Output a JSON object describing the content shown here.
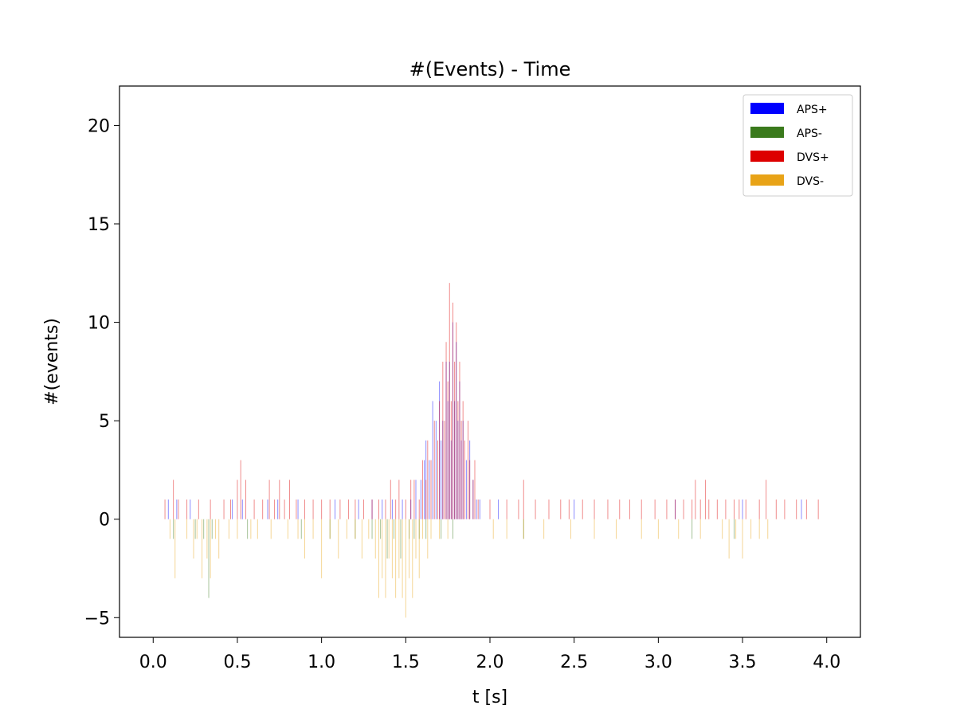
{
  "chart_data": {
    "type": "bar",
    "title": "#(Events) - Time",
    "xlabel": "t [s]",
    "ylabel": "#(events)",
    "xlim": [
      -0.2,
      4.2
    ],
    "ylim": [
      -6,
      22
    ],
    "xticks": [
      0.0,
      0.5,
      1.0,
      1.5,
      2.0,
      2.5,
      3.0,
      3.5,
      4.0
    ],
    "xtick_labels": [
      "0.0",
      "0.5",
      "1.0",
      "1.5",
      "2.0",
      "2.5",
      "3.0",
      "3.5",
      "4.0"
    ],
    "yticks": [
      -5,
      0,
      5,
      10,
      15,
      20
    ],
    "ytick_labels": [
      "−5",
      "0",
      "5",
      "10",
      "15",
      "20"
    ],
    "grid": false,
    "legend_position": "top-right",
    "bin_width_s": 0.002,
    "series": [
      {
        "name": "APS+",
        "color": "#0000ff",
        "points": [
          [
            0.09,
            1
          ],
          [
            0.14,
            1
          ],
          [
            0.22,
            1
          ],
          [
            0.47,
            1
          ],
          [
            0.53,
            1
          ],
          [
            0.68,
            1
          ],
          [
            0.74,
            1
          ],
          [
            0.86,
            1
          ],
          [
            1.08,
            1
          ],
          [
            1.22,
            1
          ],
          [
            1.3,
            1
          ],
          [
            1.36,
            1
          ],
          [
            1.42,
            1
          ],
          [
            1.48,
            1
          ],
          [
            1.53,
            1
          ],
          [
            1.56,
            2
          ],
          [
            1.59,
            2
          ],
          [
            1.61,
            3
          ],
          [
            1.62,
            4
          ],
          [
            1.64,
            3
          ],
          [
            1.66,
            6
          ],
          [
            1.68,
            5
          ],
          [
            1.7,
            7
          ],
          [
            1.71,
            4
          ],
          [
            1.72,
            5
          ],
          [
            1.74,
            8
          ],
          [
            1.75,
            6
          ],
          [
            1.76,
            8
          ],
          [
            1.77,
            4
          ],
          [
            1.78,
            10
          ],
          [
            1.79,
            6
          ],
          [
            1.8,
            9
          ],
          [
            1.81,
            5
          ],
          [
            1.82,
            7
          ],
          [
            1.83,
            4
          ],
          [
            1.84,
            5
          ],
          [
            1.86,
            3
          ],
          [
            1.88,
            4
          ],
          [
            1.9,
            2
          ],
          [
            1.92,
            1
          ],
          [
            1.94,
            1
          ],
          [
            2.05,
            1
          ],
          [
            2.5,
            1
          ],
          [
            3.1,
            1
          ],
          [
            3.5,
            1
          ],
          [
            3.85,
            1
          ]
        ]
      },
      {
        "name": "APS-",
        "color": "#3a7a1c",
        "points": [
          [
            0.12,
            -1
          ],
          [
            0.25,
            -1
          ],
          [
            0.3,
            -1
          ],
          [
            0.33,
            -4
          ],
          [
            0.35,
            -1
          ],
          [
            0.56,
            -1
          ],
          [
            0.88,
            -1
          ],
          [
            1.05,
            -1
          ],
          [
            1.2,
            -1
          ],
          [
            1.3,
            -1
          ],
          [
            1.35,
            -1
          ],
          [
            1.39,
            -2
          ],
          [
            1.43,
            -1
          ],
          [
            1.47,
            -2
          ],
          [
            1.52,
            -1
          ],
          [
            1.55,
            -1
          ],
          [
            1.58,
            -1
          ],
          [
            1.62,
            -1
          ],
          [
            1.71,
            -1
          ],
          [
            1.78,
            -1
          ],
          [
            2.2,
            -1
          ],
          [
            3.2,
            -1
          ],
          [
            3.45,
            -1
          ]
        ]
      },
      {
        "name": "DVS+",
        "color": "#dd0000",
        "points": [
          [
            0.07,
            1
          ],
          [
            0.12,
            2
          ],
          [
            0.15,
            1
          ],
          [
            0.2,
            1
          ],
          [
            0.27,
            1
          ],
          [
            0.34,
            1
          ],
          [
            0.42,
            1
          ],
          [
            0.46,
            1
          ],
          [
            0.5,
            2
          ],
          [
            0.52,
            3
          ],
          [
            0.55,
            2
          ],
          [
            0.6,
            1
          ],
          [
            0.65,
            1
          ],
          [
            0.69,
            2
          ],
          [
            0.72,
            1
          ],
          [
            0.75,
            2
          ],
          [
            0.78,
            1
          ],
          [
            0.81,
            2
          ],
          [
            0.85,
            1
          ],
          [
            0.9,
            1
          ],
          [
            0.95,
            1
          ],
          [
            1.0,
            1
          ],
          [
            1.05,
            1
          ],
          [
            1.11,
            1
          ],
          [
            1.16,
            1
          ],
          [
            1.2,
            1
          ],
          [
            1.25,
            1
          ],
          [
            1.3,
            1
          ],
          [
            1.34,
            1
          ],
          [
            1.38,
            1
          ],
          [
            1.41,
            2
          ],
          [
            1.44,
            1
          ],
          [
            1.46,
            2
          ],
          [
            1.5,
            1
          ],
          [
            1.53,
            2
          ],
          [
            1.55,
            2
          ],
          [
            1.58,
            1
          ],
          [
            1.6,
            3
          ],
          [
            1.62,
            2
          ],
          [
            1.63,
            4
          ],
          [
            1.65,
            3
          ],
          [
            1.67,
            5
          ],
          [
            1.69,
            4
          ],
          [
            1.7,
            6
          ],
          [
            1.72,
            8
          ],
          [
            1.73,
            5
          ],
          [
            1.74,
            9
          ],
          [
            1.75,
            7
          ],
          [
            1.76,
            12
          ],
          [
            1.77,
            6
          ],
          [
            1.78,
            11
          ],
          [
            1.79,
            8
          ],
          [
            1.8,
            10
          ],
          [
            1.81,
            6
          ],
          [
            1.82,
            8
          ],
          [
            1.83,
            5
          ],
          [
            1.84,
            6
          ],
          [
            1.85,
            4
          ],
          [
            1.87,
            5
          ],
          [
            1.88,
            3
          ],
          [
            1.9,
            2
          ],
          [
            1.91,
            3
          ],
          [
            1.93,
            1
          ],
          [
            2.0,
            1
          ],
          [
            2.1,
            1
          ],
          [
            2.17,
            1
          ],
          [
            2.2,
            2
          ],
          [
            2.27,
            1
          ],
          [
            2.35,
            1
          ],
          [
            2.42,
            1
          ],
          [
            2.47,
            1
          ],
          [
            2.55,
            1
          ],
          [
            2.62,
            1
          ],
          [
            2.7,
            1
          ],
          [
            2.77,
            1
          ],
          [
            2.83,
            1
          ],
          [
            2.9,
            1
          ],
          [
            2.98,
            1
          ],
          [
            3.05,
            1
          ],
          [
            3.1,
            1
          ],
          [
            3.15,
            1
          ],
          [
            3.2,
            1
          ],
          [
            3.22,
            2
          ],
          [
            3.25,
            1
          ],
          [
            3.28,
            2
          ],
          [
            3.3,
            1
          ],
          [
            3.35,
            1
          ],
          [
            3.4,
            1
          ],
          [
            3.45,
            1
          ],
          [
            3.48,
            1
          ],
          [
            3.52,
            1
          ],
          [
            3.6,
            1
          ],
          [
            3.64,
            2
          ],
          [
            3.7,
            1
          ],
          [
            3.75,
            1
          ],
          [
            3.82,
            1
          ],
          [
            3.88,
            1
          ],
          [
            3.95,
            1
          ]
        ]
      },
      {
        "name": "DVS-",
        "color": "#e8a317",
        "points": [
          [
            0.1,
            -1
          ],
          [
            0.13,
            -3
          ],
          [
            0.2,
            -1
          ],
          [
            0.24,
            -2
          ],
          [
            0.26,
            -1
          ],
          [
            0.29,
            -3
          ],
          [
            0.32,
            -2
          ],
          [
            0.34,
            -3
          ],
          [
            0.37,
            -1
          ],
          [
            0.39,
            -2
          ],
          [
            0.45,
            -1
          ],
          [
            0.5,
            -1
          ],
          [
            0.58,
            -1
          ],
          [
            0.62,
            -1
          ],
          [
            0.7,
            -1
          ],
          [
            0.8,
            -1
          ],
          [
            0.86,
            -1
          ],
          [
            0.9,
            -2
          ],
          [
            0.95,
            -1
          ],
          [
            1.0,
            -3
          ],
          [
            1.05,
            -1
          ],
          [
            1.1,
            -2
          ],
          [
            1.15,
            -1
          ],
          [
            1.2,
            -1
          ],
          [
            1.24,
            -2
          ],
          [
            1.28,
            -1
          ],
          [
            1.32,
            -2
          ],
          [
            1.34,
            -4
          ],
          [
            1.36,
            -3
          ],
          [
            1.38,
            -4
          ],
          [
            1.4,
            -2
          ],
          [
            1.42,
            -3
          ],
          [
            1.44,
            -4
          ],
          [
            1.46,
            -3
          ],
          [
            1.48,
            -4
          ],
          [
            1.5,
            -5
          ],
          [
            1.52,
            -3
          ],
          [
            1.54,
            -4
          ],
          [
            1.56,
            -2
          ],
          [
            1.58,
            -3
          ],
          [
            1.6,
            -1
          ],
          [
            1.63,
            -2
          ],
          [
            1.65,
            -1
          ],
          [
            1.7,
            -1
          ],
          [
            1.75,
            -1
          ],
          [
            2.02,
            -1
          ],
          [
            2.1,
            -1
          ],
          [
            2.2,
            -1
          ],
          [
            2.32,
            -1
          ],
          [
            2.48,
            -1
          ],
          [
            2.62,
            -1
          ],
          [
            2.75,
            -1
          ],
          [
            2.9,
            -1
          ],
          [
            3.0,
            -1
          ],
          [
            3.12,
            -1
          ],
          [
            3.25,
            -1
          ],
          [
            3.38,
            -1
          ],
          [
            3.42,
            -2
          ],
          [
            3.46,
            -1
          ],
          [
            3.5,
            -2
          ],
          [
            3.55,
            -1
          ],
          [
            3.6,
            -1
          ],
          [
            3.65,
            -1
          ]
        ]
      }
    ]
  }
}
